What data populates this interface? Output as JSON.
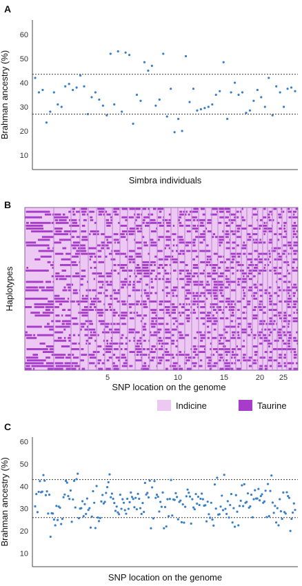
{
  "chart_data": [
    {
      "panel": "A",
      "type": "scatter",
      "xlabel": "Simbra individuals",
      "ylabel": "Brahman ancestry (%)",
      "yticks": [
        10,
        20,
        30,
        40,
        50,
        60
      ],
      "ylim": [
        4,
        66
      ],
      "thresholds": [
        43.5,
        27
      ],
      "point_color": "#3a7ec8",
      "values": [
        42,
        36,
        37,
        23.5,
        28,
        36,
        31,
        30,
        38.5,
        39.5,
        37,
        38,
        43,
        38.5,
        27,
        34,
        36,
        33,
        30.5,
        26.5,
        52,
        31,
        53,
        28,
        52.5,
        51.5,
        23,
        35,
        32.5,
        48.5,
        45,
        47,
        30.5,
        33,
        52,
        26,
        37.5,
        19.5,
        25,
        20,
        51,
        32,
        37.5,
        28.5,
        29,
        29.5,
        30,
        31,
        35,
        36.5,
        48.5,
        25,
        36,
        40,
        35,
        36,
        27.5,
        28.5,
        32.5,
        37,
        34,
        30,
        42,
        26.5,
        38.5,
        36,
        30,
        37.5,
        38,
        36.5
      ]
    },
    {
      "panel": "B",
      "type": "heatmap",
      "xlabel": "SNP location on the genome",
      "ylabel": "Haplotypes",
      "xticks": [
        "5",
        "10",
        "15",
        "20",
        "25"
      ],
      "legend": [
        {
          "label": "Indicine",
          "color": "#ecc8f2"
        },
        {
          "label": "Taurine",
          "color": "#a63cc9"
        }
      ],
      "grid_color": "#b77fd3",
      "rows": 58
    },
    {
      "panel": "C",
      "type": "scatter",
      "xlabel": "SNP location on the genome",
      "ylabel": "Brahman ancestry (%)",
      "yticks": [
        10,
        20,
        30,
        40,
        50,
        60
      ],
      "ylim": [
        4,
        62
      ],
      "thresholds": [
        43,
        26
      ],
      "point_color": "#3a7ec8",
      "values": [
        31.0,
        36.5,
        28.4,
        37.5,
        42.3,
        37.3,
        37.6,
        45.0,
        42.5,
        36.0,
        37.7,
        27.8,
        36.2,
        17.4,
        27.9,
        27.8,
        25.1,
        22.5,
        31.2,
        24.9,
        30.9,
        30.4,
        23.1,
        25.4,
        35.1,
        36.3,
        42.4,
        41.6,
        35.6,
        34.3,
        38.1,
        24.1,
        34.1,
        42.4,
        30.5,
        43.2,
        45.6,
        25.7,
        30.0,
        30.2,
        33.3,
        26.6,
        32.0,
        27.6,
        34.5,
        29.4,
        30.2,
        21.5,
        26.4,
        37.8,
        32.6,
        21.3,
        40.1,
        26.0,
        24.4,
        25.8,
        33.2,
        36.1,
        32.3,
        33.0,
        37.0,
        39.6,
        41.8,
        45.3,
        35.1,
        36.7,
        34.4,
        32.5,
        29.0,
        30.9,
        28.3,
        27.5,
        36.2,
        29.9,
        34.2,
        32.6,
        29.3,
        27.7,
        34.4,
        29.9,
        32.9,
        37.2,
        35.2,
        34.3,
        30.6,
        34.8,
        29.7,
        36.6,
        34.4,
        30.2,
        27.6,
        32.5,
        28.5,
        41.5,
        36.3,
        37.0,
        35.0,
        42.5,
        21.2,
        39.5,
        25.6,
        42.3,
        34.8,
        36.2,
        35.3,
        28.7,
        33.0,
        30.8,
        37.2,
        21.2,
        30.7,
        22.0,
        34.2,
        26.6,
        34.3,
        42.8,
        26.9,
        34.1,
        33.9,
        36.9,
        35.2,
        25.2,
        33.0,
        33.6,
        23.9,
        31.9,
        23.7,
        30.8,
        35.5,
        38.5,
        37.1,
        35.4,
        23.3,
        34.2,
        30.5,
        29.7,
        36.5,
        32.2,
        35.3,
        31.6,
        34.4,
        36.7,
        34.2,
        31.3,
        31.5,
        24.3,
        33.1,
        27.5,
        25.9,
        32.6,
        25.1,
        22.4,
        40.8,
        30.0,
        43.8,
        27.3,
        27.5,
        30.9,
        35.8,
        29.3,
        45.1,
        29.9,
        27.6,
        33.3,
        26.0,
        31.6,
        36.5,
        23.8,
        30.2,
        21.9,
        36.0,
        28.6,
        22.5,
        31.2,
        33.5,
        40.4,
        31.1,
        40.9,
        32.6,
        33.0,
        36.8,
        30.4,
        31.0,
        36.2,
        26.1,
        34.2,
        38.2,
        34.5,
        34.5,
        38.8,
        33.7,
        35.6,
        36.4,
        32.6,
        33.2,
        38.0,
        26.2,
        41.0,
        26.6,
        37.9,
        44.8,
        32.7,
        28.1,
        31.2,
        23.8,
        30.2,
        22.5,
        34.2,
        28.8,
        25.4,
        37.2,
        28.4,
        27.8,
        37.3,
        35.6,
        34.8,
        20.0,
        25.4,
        28.2,
        32.3,
        29.4
      ]
    }
  ]
}
